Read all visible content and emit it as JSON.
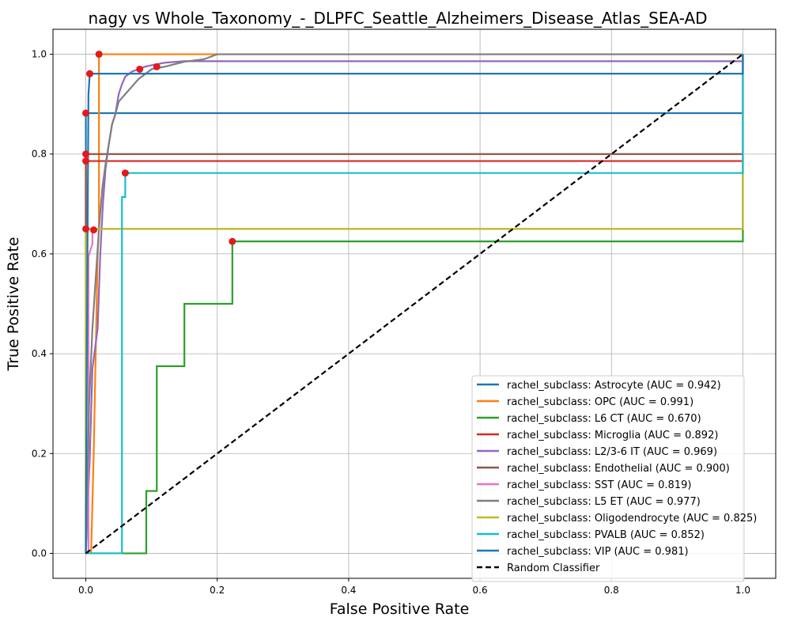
{
  "chart_data": {
    "type": "line",
    "title": "nagy vs Whole_Taxonomy_-_DLPFC_Seattle_Alzheimers_Disease_Atlas_SEA-AD",
    "xlabel": "False Positive Rate",
    "ylabel": "True Positive Rate",
    "xlim": [
      -0.05,
      1.05
    ],
    "ylim": [
      -0.05,
      1.05
    ],
    "xticks": [
      "0.0",
      "0.2",
      "0.4",
      "0.6",
      "0.8",
      "1.0"
    ],
    "yticks": [
      "0.0",
      "0.2",
      "0.4",
      "0.6",
      "0.8",
      "1.0"
    ],
    "grid": true,
    "legend_position": "lower-right",
    "series": [
      {
        "name": "rachel_subclass: Astrocyte (AUC = 0.942)",
        "color": "#1f77b4",
        "x": [
          0,
          0,
          0,
          1
        ],
        "y": [
          0,
          0.5,
          0.882,
          0.882
        ],
        "marker": [
          0.0,
          0.882
        ]
      },
      {
        "name": "rachel_subclass: OPC (AUC = 0.991)",
        "color": "#ff7f0e",
        "x": [
          0,
          0.008,
          0.012,
          0.015,
          0.018,
          0.02,
          0.02,
          0.02,
          0.025,
          0.19,
          1.0
        ],
        "y": [
          0,
          0,
          0.2,
          0.4,
          0.6,
          0.65,
          0.95,
          1.0,
          1.0,
          1.0,
          1.0
        ],
        "marker": [
          0.02,
          1.0
        ]
      },
      {
        "name": "rachel_subclass: L6 CT (AUC = 0.670)",
        "color": "#2ca02c",
        "x": [
          0,
          0.092,
          0.092,
          0.108,
          0.108,
          0.15,
          0.15,
          0.223,
          0.223,
          1.0,
          1.0
        ],
        "y": [
          0,
          0,
          0.125,
          0.125,
          0.375,
          0.375,
          0.5,
          0.5,
          0.625,
          0.625,
          1.0
        ],
        "marker": [
          0.223,
          0.625
        ]
      },
      {
        "name": "rachel_subclass: Microglia (AUC = 0.892)",
        "color": "#d62728",
        "x": [
          0,
          0,
          0,
          1.0
        ],
        "y": [
          0,
          0.5,
          0.786,
          0.786
        ],
        "marker": [
          0.0,
          0.786
        ]
      },
      {
        "name": "rachel_subclass: L2/3-6 IT (AUC = 0.969)",
        "color": "#9467bd",
        "x": [
          0,
          0.006,
          0.01,
          0.014,
          0.018,
          0.022,
          0.026,
          0.03,
          0.035,
          0.04,
          0.045,
          0.05,
          0.055,
          0.06,
          0.07,
          0.08,
          0.09,
          0.1,
          0.12,
          0.15,
          1.0,
          1.0
        ],
        "y": [
          0,
          0.19,
          0.37,
          0.41,
          0.45,
          0.6,
          0.7,
          0.77,
          0.82,
          0.86,
          0.88,
          0.92,
          0.94,
          0.955,
          0.965,
          0.97,
          0.975,
          0.978,
          0.983,
          0.986,
          0.986,
          1.0
        ],
        "marker": [
          0.108,
          0.975
        ]
      },
      {
        "name": "rachel_subclass: Endothelial (AUC = 0.900)",
        "color": "#8c564b",
        "x": [
          0,
          0,
          0,
          1.0
        ],
        "y": [
          0,
          0.5,
          0.8,
          0.8
        ],
        "marker": [
          0.0,
          0.8
        ]
      },
      {
        "name": "rachel_subclass: SST (AUC = 0.819)",
        "color": "#e377c2",
        "x": [
          0,
          0.004,
          0.004,
          0.01,
          0.01,
          1.0,
          1.0
        ],
        "y": [
          0,
          0,
          0.595,
          0.62,
          0.65,
          0.65,
          1.0
        ],
        "marker": [
          0.012,
          0.648
        ]
      },
      {
        "name": "rachel_subclass: L5 ET (AUC = 0.977)",
        "color": "#7f7f7f",
        "x": [
          0,
          0.005,
          0.01,
          0.015,
          0.02,
          0.025,
          0.03,
          0.035,
          0.04,
          0.045,
          0.05,
          0.06,
          0.07,
          0.08,
          0.1,
          0.12,
          0.15,
          0.18,
          0.2,
          1.0
        ],
        "y": [
          0,
          0.3,
          0.45,
          0.55,
          0.65,
          0.73,
          0.78,
          0.82,
          0.86,
          0.88,
          0.905,
          0.92,
          0.935,
          0.95,
          0.97,
          0.975,
          0.985,
          0.99,
          1.0,
          1.0
        ],
        "marker": [
          0.082,
          0.97
        ]
      },
      {
        "name": "rachel_subclass: Oligodendrocyte (AUC = 0.825)",
        "color": "#bcbd22",
        "x": [
          0,
          0,
          0,
          1.0,
          1.0
        ],
        "y": [
          0,
          0.5,
          0.65,
          0.65,
          1.0
        ],
        "marker": [
          0.0,
          0.65
        ]
      },
      {
        "name": "rachel_subclass: PVALB (AUC = 0.852)",
        "color": "#17becf",
        "x": [
          0,
          0.055,
          0.055,
          0.06,
          0.06,
          1.0,
          1.0
        ],
        "y": [
          0,
          0,
          0.714,
          0.714,
          0.762,
          0.762,
          1.0
        ],
        "marker": [
          0.06,
          0.762
        ]
      },
      {
        "name": "rachel_subclass: VIP (AUC = 0.981)",
        "color": "#1f77b4",
        "x": [
          0,
          0.002,
          0.004,
          0.006,
          1.0,
          1.0
        ],
        "y": [
          0,
          0.5,
          0.92,
          0.961,
          0.961,
          1.0
        ],
        "marker": [
          0.006,
          0.961
        ]
      },
      {
        "name": "Random Classifier",
        "color": "#000000",
        "dashed": true,
        "x": [
          0,
          1
        ],
        "y": [
          0,
          1
        ]
      }
    ]
  }
}
